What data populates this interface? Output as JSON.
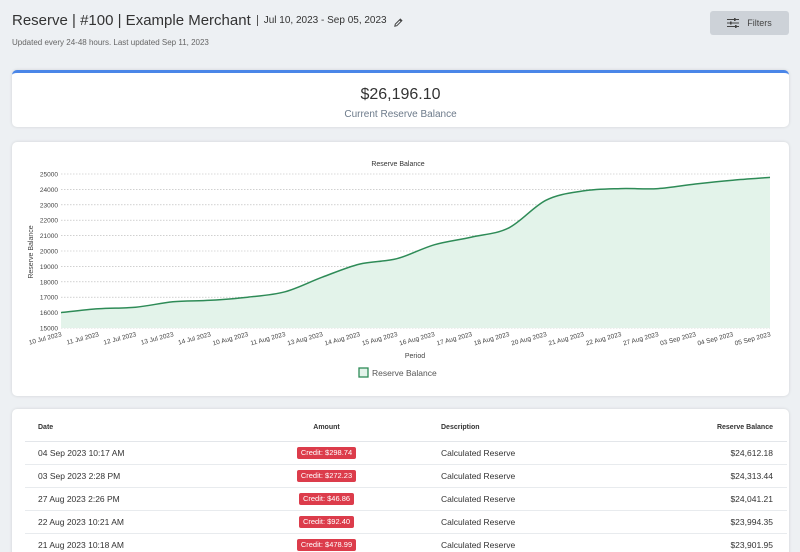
{
  "header": {
    "title": "Reserve | #100 | Example Merchant",
    "date_range": "Jul 10, 2023 - Sep 05, 2023",
    "subtitle": "Updated every 24-48 hours. Last updated Sep 11, 2023"
  },
  "filters_button": {
    "label": "Filters"
  },
  "balance_card": {
    "amount": "$26,196.10",
    "label": "Current Reserve Balance"
  },
  "chart_data": {
    "type": "area",
    "title": "Reserve Balance",
    "xlabel": "Period",
    "ylabel": "Reserve Balance",
    "ylim": [
      15000,
      25000
    ],
    "yticks": [
      15000,
      16000,
      17000,
      18000,
      19000,
      20000,
      21000,
      22000,
      23000,
      24000,
      25000
    ],
    "grid": true,
    "legend_position": "bottom",
    "categories": [
      "10 Jul 2023",
      "11 Jul 2023",
      "12 Jul 2023",
      "13 Jul 2023",
      "14 Jul 2023",
      "10 Aug 2023",
      "11 Aug 2023",
      "13 Aug 2023",
      "14 Aug 2023",
      "15 Aug 2023",
      "16 Aug 2023",
      "17 Aug 2023",
      "18 Aug 2023",
      "20 Aug 2023",
      "21 Aug 2023",
      "22 Aug 2023",
      "27 Aug 2023",
      "03 Sep 2023",
      "04 Sep 2023",
      "05 Sep 2023"
    ],
    "series": [
      {
        "name": "Reserve Balance",
        "color": "#2e8b57",
        "fill": "#e3f3ea",
        "values": [
          16000,
          16250,
          16350,
          16700,
          16800,
          17000,
          17350,
          18300,
          19150,
          19500,
          20400,
          20900,
          21500,
          23300,
          23900,
          24050,
          24050,
          24350,
          24600,
          24780
        ]
      }
    ]
  },
  "table": {
    "columns": [
      "Date",
      "Amount",
      "Description",
      "Reserve Balance"
    ],
    "rows": [
      {
        "date": "04 Sep 2023 10:17 AM",
        "amount": "Credit: $298.74",
        "description": "Calculated Reserve",
        "balance": "$24,612.18"
      },
      {
        "date": "03 Sep 2023 2:28 PM",
        "amount": "Credit: $272.23",
        "description": "Calculated Reserve",
        "balance": "$24,313.44"
      },
      {
        "date": "27 Aug 2023 2:26 PM",
        "amount": "Credit: $46.86",
        "description": "Calculated Reserve",
        "balance": "$24,041.21"
      },
      {
        "date": "22 Aug 2023 10:21 AM",
        "amount": "Credit: $92.40",
        "description": "Calculated Reserve",
        "balance": "$23,994.35"
      },
      {
        "date": "21 Aug 2023 10:18 AM",
        "amount": "Credit: $478.99",
        "description": "Calculated Reserve",
        "balance": "$23,901.95"
      }
    ]
  }
}
